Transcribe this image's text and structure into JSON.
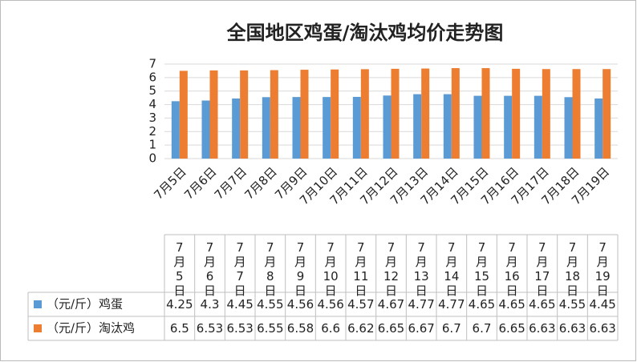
{
  "chart_data": {
    "type": "bar",
    "title": "全国地区鸡蛋/淘汰鸡均价走势图",
    "categories": [
      "7月5日",
      "7月6日",
      "7月7日",
      "7月8日",
      "7月9日",
      "7月10日",
      "7月11日",
      "7月12日",
      "7月13日",
      "7月14日",
      "7月15日",
      "7月16日",
      "7月17日",
      "7月18日",
      "7月19日"
    ],
    "series": [
      {
        "name": "（元/斤）鸡蛋",
        "color": "#5b9bd5",
        "values": [
          4.25,
          4.3,
          4.45,
          4.55,
          4.56,
          4.56,
          4.57,
          4.67,
          4.77,
          4.77,
          4.65,
          4.65,
          4.65,
          4.55,
          4.45
        ]
      },
      {
        "name": "（元/斤）淘汰鸡",
        "color": "#ed7d31",
        "values": [
          6.5,
          6.53,
          6.53,
          6.55,
          6.58,
          6.6,
          6.62,
          6.65,
          6.67,
          6.7,
          6.7,
          6.65,
          6.63,
          6.63,
          6.63
        ]
      }
    ],
    "ylim": [
      0,
      7
    ],
    "yticks": [
      0,
      1,
      2,
      3,
      4,
      5,
      6,
      7
    ],
    "grid": true
  }
}
